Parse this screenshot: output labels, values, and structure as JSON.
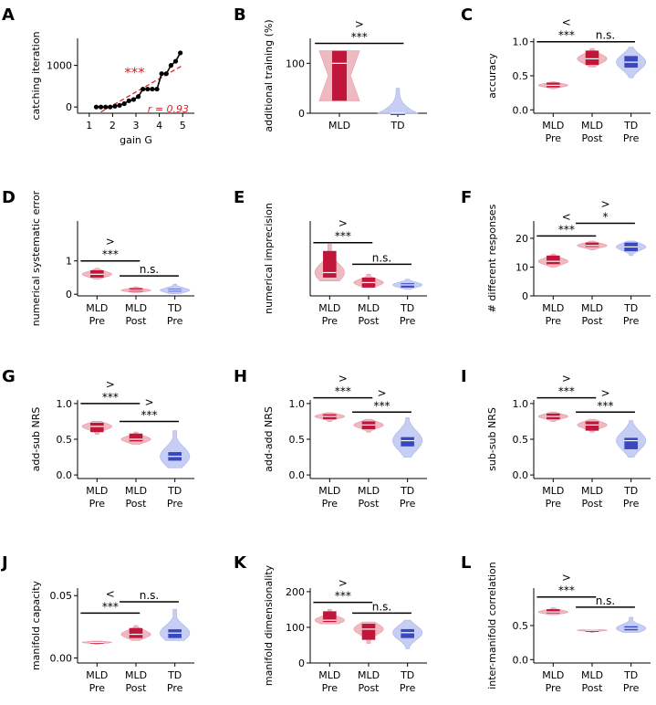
{
  "colors": {
    "mld": "#c0163a",
    "mld_light": "#eaa2ad",
    "td": "#3848c0",
    "td_light": "#b3bdf0",
    "regression": "#d62728",
    "axis": "#000000"
  },
  "chart_data": [
    {
      "panel": "A",
      "type": "line",
      "xlabel": "gain G",
      "ylabel": "catching iteration",
      "xlim": [
        0.5,
        5.5
      ],
      "ylim": [
        -150,
        1650
      ],
      "xticks": [
        "1",
        "2",
        "3",
        "4",
        "5"
      ],
      "yticks": [
        "0",
        "1000"
      ],
      "x": [
        1.3,
        1.5,
        1.7,
        1.9,
        2.1,
        2.3,
        2.5,
        2.7,
        2.9,
        3.1,
        3.3,
        3.5,
        3.7,
        3.9,
        4.1,
        4.3,
        4.5,
        4.7,
        4.9
      ],
      "y": [
        0,
        0,
        0,
        0,
        20,
        40,
        80,
        150,
        180,
        250,
        430,
        430,
        430,
        430,
        800,
        800,
        1000,
        1100,
        1300
      ],
      "trend": {
        "x": [
          1.5,
          5.0
        ],
        "y": [
          -120,
          1000
        ]
      },
      "annotations": [
        "***",
        "r = 0.93"
      ]
    },
    {
      "panel": "B",
      "type": "violin",
      "ylabel": "additional training (%)",
      "categories": [
        "MLD",
        "TD"
      ],
      "ylim": [
        0,
        150
      ],
      "yticks": [
        "0",
        "100"
      ],
      "groups": [
        {
          "group": "mld",
          "min": 25,
          "q1": 25,
          "median": 100,
          "q3": 125,
          "max": 125,
          "shape": "hourglass"
        },
        {
          "group": "td",
          "min": 0,
          "q1": 0,
          "median": 0,
          "q3": 0,
          "max": 50,
          "shape": "tail"
        }
      ],
      "sig": [
        {
          "from": 0,
          "to": 1,
          "y": 140,
          "stars": "***",
          "dir": ">"
        }
      ]
    },
    {
      "panel": "C",
      "type": "violin",
      "ylabel": "accuracy",
      "categories": [
        "MLD\nPre",
        "MLD\nPost",
        "TD\nPre"
      ],
      "ylim": [
        -0.05,
        1.05
      ],
      "yticks": [
        "0.0",
        "0.5",
        "1.0"
      ],
      "groups": [
        {
          "group": "mld",
          "min": 0.31,
          "q1": 0.33,
          "median": 0.36,
          "q3": 0.4,
          "max": 0.41,
          "shape": "normal"
        },
        {
          "group": "mld",
          "min": 0.63,
          "q1": 0.66,
          "median": 0.75,
          "q3": 0.87,
          "max": 0.9,
          "shape": "normal"
        },
        {
          "group": "td",
          "min": 0.47,
          "q1": 0.62,
          "median": 0.7,
          "q3": 0.79,
          "max": 0.92,
          "shape": "normal"
        }
      ],
      "sig": [
        {
          "from": 0,
          "to": 1,
          "y": 1.0,
          "stars": "***",
          "dir": "<"
        },
        {
          "from": 1,
          "to": 2,
          "y": 1.0,
          "stars": "n.s.",
          "dir": ""
        }
      ]
    },
    {
      "panel": "D",
      "type": "violin",
      "ylabel": "numerical systematic error",
      "categories": [
        "MLD\nPre",
        "MLD\nPost",
        "TD\nPre"
      ],
      "ylim": [
        -0.05,
        2.2
      ],
      "yticks": [
        "0",
        "1"
      ],
      "groups": [
        {
          "group": "mld",
          "min": 0.45,
          "q1": 0.5,
          "median": 0.6,
          "q3": 0.72,
          "max": 0.78,
          "shape": "normal"
        },
        {
          "group": "mld",
          "min": 0.05,
          "q1": 0.08,
          "median": 0.12,
          "q3": 0.18,
          "max": 0.22,
          "shape": "normal"
        },
        {
          "group": "td",
          "min": 0.02,
          "q1": 0.08,
          "median": 0.12,
          "q3": 0.16,
          "max": 0.3,
          "shape": "normal"
        }
      ],
      "sig": [
        {
          "from": 0,
          "to": 1,
          "y": 1.0,
          "stars": "***",
          "dir": ">"
        },
        {
          "from": 1,
          "to": 2,
          "y": 0.55,
          "stars": "n.s.",
          "dir": ""
        }
      ]
    },
    {
      "panel": "E",
      "type": "violin",
      "ylabel": "numerical imprecision",
      "categories": [
        "MLD\nPre",
        "MLD\nPost",
        "TD\nPre"
      ],
      "ylim": [
        0.55,
        2.8
      ],
      "yticks": [],
      "groups": [
        {
          "group": "mld",
          "min": 1.0,
          "q1": 1.1,
          "median": 1.25,
          "q3": 1.9,
          "max": 2.1,
          "shape": "normal"
        },
        {
          "group": "mld",
          "min": 0.8,
          "q1": 0.8,
          "median": 0.95,
          "q3": 1.1,
          "max": 1.2,
          "shape": "normal"
        },
        {
          "group": "td",
          "min": 0.75,
          "q1": 0.8,
          "median": 0.88,
          "q3": 0.93,
          "max": 1.05,
          "shape": "normal"
        }
      ],
      "sig": [
        {
          "from": 0,
          "to": 1,
          "y": 2.15,
          "stars": "***",
          "dir": ">"
        },
        {
          "from": 1,
          "to": 2,
          "y": 1.5,
          "stars": "n.s.",
          "dir": ""
        }
      ]
    },
    {
      "panel": "F",
      "type": "violin",
      "ylabel": "# different responses",
      "categories": [
        "MLD\nPre",
        "MLD\nPost",
        "TD\nPre"
      ],
      "ylim": [
        0,
        26
      ],
      "yticks": [
        "0",
        "10",
        "20"
      ],
      "groups": [
        {
          "group": "mld",
          "min": 10,
          "q1": 11,
          "median": 12,
          "q3": 14,
          "max": 14.5,
          "shape": "normal"
        },
        {
          "group": "mld",
          "min": 16,
          "q1": 17,
          "median": 17.5,
          "q3": 18.5,
          "max": 19,
          "shape": "normal"
        },
        {
          "group": "td",
          "min": 14,
          "q1": 15.5,
          "median": 17,
          "q3": 18.5,
          "max": 19,
          "shape": "normal"
        }
      ],
      "sig": [
        {
          "from": 0,
          "to": 1,
          "y": 20.8,
          "stars": "***",
          "dir": "<"
        },
        {
          "from": 1,
          "to": 2,
          "y": 25.2,
          "stars": "*",
          "dir": ">"
        }
      ]
    },
    {
      "panel": "G",
      "type": "violin",
      "ylabel": "add-sub NRS",
      "categories": [
        "MLD\nPre",
        "MLD\nPost",
        "TD\nPre"
      ],
      "ylim": [
        -0.05,
        1.05
      ],
      "yticks": [
        "0.0",
        "0.5",
        "1.0"
      ],
      "groups": [
        {
          "group": "mld",
          "min": 0.57,
          "q1": 0.6,
          "median": 0.68,
          "q3": 0.73,
          "max": 0.75,
          "shape": "normal"
        },
        {
          "group": "mld",
          "min": 0.43,
          "q1": 0.47,
          "median": 0.5,
          "q3": 0.58,
          "max": 0.6,
          "shape": "normal"
        },
        {
          "group": "td",
          "min": 0.1,
          "q1": 0.2,
          "median": 0.26,
          "q3": 0.32,
          "max": 0.62,
          "shape": "normal"
        }
      ],
      "sig": [
        {
          "from": 0,
          "to": 1,
          "y": 1.0,
          "stars": "***",
          "dir": ">"
        },
        {
          "from": 1,
          "to": 2,
          "y": 0.75,
          "stars": "***",
          "dir": ">"
        }
      ]
    },
    {
      "panel": "H",
      "type": "violin",
      "ylabel": "add-add NRS",
      "categories": [
        "MLD\nPre",
        "MLD\nPost",
        "TD\nPre"
      ],
      "ylim": [
        -0.05,
        1.05
      ],
      "yticks": [
        "0.0",
        "0.5",
        "1.0"
      ],
      "groups": [
        {
          "group": "mld",
          "min": 0.75,
          "q1": 0.78,
          "median": 0.82,
          "q3": 0.85,
          "max": 0.87,
          "shape": "normal"
        },
        {
          "group": "mld",
          "min": 0.6,
          "q1": 0.64,
          "median": 0.7,
          "q3": 0.75,
          "max": 0.78,
          "shape": "normal"
        },
        {
          "group": "td",
          "min": 0.25,
          "q1": 0.4,
          "median": 0.48,
          "q3": 0.53,
          "max": 0.8,
          "shape": "normal"
        }
      ],
      "sig": [
        {
          "from": 0,
          "to": 1,
          "y": 1.08,
          "stars": "***",
          "dir": ">"
        },
        {
          "from": 1,
          "to": 2,
          "y": 0.88,
          "stars": "***",
          "dir": ">"
        }
      ]
    },
    {
      "panel": "I",
      "type": "violin",
      "ylabel": "sub-sub NRS",
      "categories": [
        "MLD\nPre",
        "MLD\nPost",
        "TD\nPre"
      ],
      "ylim": [
        -0.05,
        1.05
      ],
      "yticks": [
        "0.0",
        "0.5",
        "1.0"
      ],
      "groups": [
        {
          "group": "mld",
          "min": 0.75,
          "q1": 0.78,
          "median": 0.82,
          "q3": 0.86,
          "max": 0.88,
          "shape": "normal"
        },
        {
          "group": "mld",
          "min": 0.6,
          "q1": 0.62,
          "median": 0.7,
          "q3": 0.75,
          "max": 0.78,
          "shape": "normal"
        },
        {
          "group": "td",
          "min": 0.25,
          "q1": 0.36,
          "median": 0.48,
          "q3": 0.52,
          "max": 0.76,
          "shape": "normal"
        }
      ],
      "sig": [
        {
          "from": 0,
          "to": 1,
          "y": 1.08,
          "stars": "***",
          "dir": ">"
        },
        {
          "from": 1,
          "to": 2,
          "y": 0.88,
          "stars": "***",
          "dir": ">"
        }
      ]
    },
    {
      "panel": "J",
      "type": "violin",
      "ylabel": "manifold capacity",
      "categories": [
        "MLD\nPre",
        "MLD\nPost",
        "TD\nPre"
      ],
      "ylim": [
        -0.004,
        0.056
      ],
      "yticks": [
        "0.00",
        "0.05"
      ],
      "groups": [
        {
          "group": "mld",
          "min": 0.011,
          "q1": 0.012,
          "median": 0.0125,
          "q3": 0.013,
          "max": 0.0135,
          "shape": "normal"
        },
        {
          "group": "mld",
          "min": 0.014,
          "q1": 0.016,
          "median": 0.019,
          "q3": 0.024,
          "max": 0.026,
          "shape": "normal"
        },
        {
          "group": "td",
          "min": 0.014,
          "q1": 0.016,
          "median": 0.02,
          "q3": 0.023,
          "max": 0.039,
          "shape": "normal"
        }
      ],
      "sig": [
        {
          "from": 0,
          "to": 1,
          "y": 0.036,
          "stars": "***",
          "dir": "<"
        },
        {
          "from": 1,
          "to": 2,
          "y": 0.045,
          "stars": "n.s.",
          "dir": ""
        }
      ]
    },
    {
      "panel": "K",
      "type": "violin",
      "ylabel": "manifold dimensionality",
      "categories": [
        "MLD\nPre",
        "MLD\nPost",
        "TD\nPre"
      ],
      "ylim": [
        0,
        210
      ],
      "yticks": [
        "0",
        "100",
        "200"
      ],
      "groups": [
        {
          "group": "mld",
          "min": 110,
          "q1": 115,
          "median": 120,
          "q3": 145,
          "max": 150,
          "shape": "normal"
        },
        {
          "group": "mld",
          "min": 55,
          "q1": 65,
          "median": 95,
          "q3": 110,
          "max": 115,
          "shape": "normal"
        },
        {
          "group": "td",
          "min": 40,
          "q1": 70,
          "median": 85,
          "q3": 95,
          "max": 120,
          "shape": "normal"
        }
      ],
      "sig": [
        {
          "from": 0,
          "to": 1,
          "y": 170,
          "stars": "***",
          "dir": ">"
        },
        {
          "from": 1,
          "to": 2,
          "y": 140,
          "stars": "n.s.",
          "dir": ""
        }
      ]
    },
    {
      "panel": "L",
      "type": "violin",
      "ylabel": "inter-manifold correlation",
      "categories": [
        "MLD\nPre",
        "MLD\nPost",
        "TD\nPre"
      ],
      "ylim": [
        -0.05,
        1.05
      ],
      "yticks": [
        "0.0",
        "0.5"
      ],
      "groups": [
        {
          "group": "mld",
          "min": 0.66,
          "q1": 0.68,
          "median": 0.7,
          "q3": 0.74,
          "max": 0.76,
          "shape": "normal"
        },
        {
          "group": "mld",
          "min": 0.42,
          "q1": 0.425,
          "median": 0.43,
          "q3": 0.435,
          "max": 0.44,
          "shape": "normal"
        },
        {
          "group": "td",
          "min": 0.4,
          "q1": 0.43,
          "median": 0.46,
          "q3": 0.49,
          "max": 0.62,
          "shape": "normal"
        }
      ],
      "sig": [
        {
          "from": 0,
          "to": 1,
          "y": 0.92,
          "stars": "***",
          "dir": ">"
        },
        {
          "from": 1,
          "to": 2,
          "y": 0.77,
          "stars": "n.s.",
          "dir": ""
        }
      ]
    }
  ]
}
